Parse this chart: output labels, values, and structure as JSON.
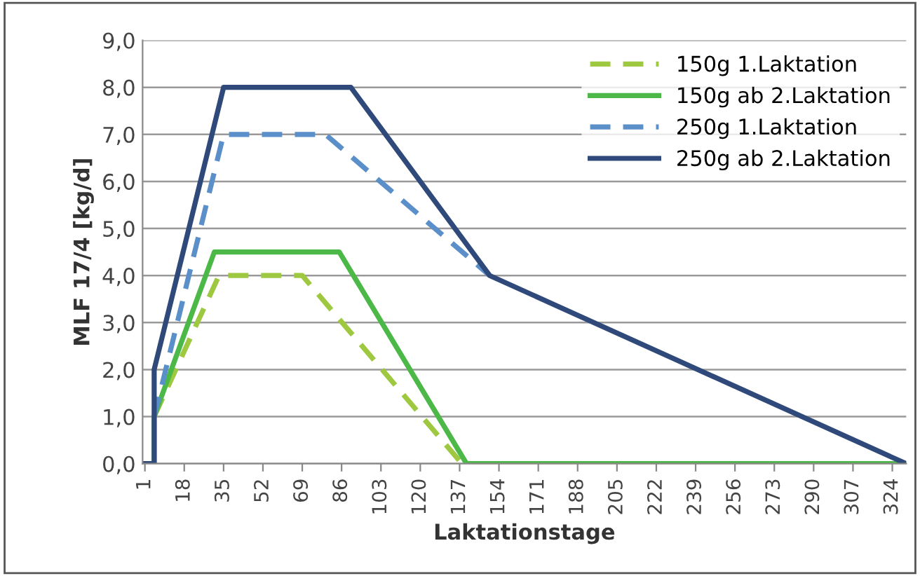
{
  "chart_data": {
    "type": "line",
    "xlabel": "Laktationstage",
    "ylabel": "MLF 17/4 [kg/d]",
    "xlim": [
      0,
      330
    ],
    "xticks": [
      1,
      18,
      35,
      52,
      69,
      86,
      103,
      120,
      137,
      154,
      171,
      188,
      205,
      222,
      239,
      256,
      273,
      290,
      307,
      324
    ],
    "ylim": [
      0,
      9
    ],
    "yticks": [
      {
        "value": 0,
        "label": "0,0"
      },
      {
        "value": 1,
        "label": "1,0"
      },
      {
        "value": 2,
        "label": "2,0"
      },
      {
        "value": 3,
        "label": "3,0"
      },
      {
        "value": 4,
        "label": "4,0"
      },
      {
        "value": 5,
        "label": "5,0"
      },
      {
        "value": 6,
        "label": "6,0"
      },
      {
        "value": 7,
        "label": "7,0"
      },
      {
        "value": 8,
        "label": "8,0"
      },
      {
        "value": 9,
        "label": "9,0"
      }
    ],
    "grid": "y",
    "legend": "top right",
    "marker": "none",
    "series": [
      {
        "name": "150g 1.Laktation",
        "color": "#9dc83f",
        "line_style": "dashed",
        "x": [
          5,
          33,
          69,
          138
        ],
        "values": [
          1,
          4,
          4,
          0
        ]
      },
      {
        "name": "150g ab 2.Laktation",
        "color": "#4cb847",
        "line_style": "solid",
        "x": [
          1,
          5,
          5,
          31,
          85,
          140,
          330
        ],
        "values": [
          0,
          0,
          1,
          4.5,
          4.5,
          0,
          0
        ]
      },
      {
        "name": "250g 1.Laktation",
        "color": "#5b8fc9",
        "line_style": "dashed",
        "x": [
          5,
          35,
          79,
          150
        ],
        "values": [
          1,
          7,
          7,
          4
        ]
      },
      {
        "name": "250g ab 2.Laktation",
        "color": "#2f4a7a",
        "line_style": "solid",
        "x": [
          1,
          5,
          5,
          35,
          90,
          150,
          330
        ],
        "values": [
          0,
          0,
          2,
          8,
          8,
          4,
          0
        ]
      }
    ]
  }
}
